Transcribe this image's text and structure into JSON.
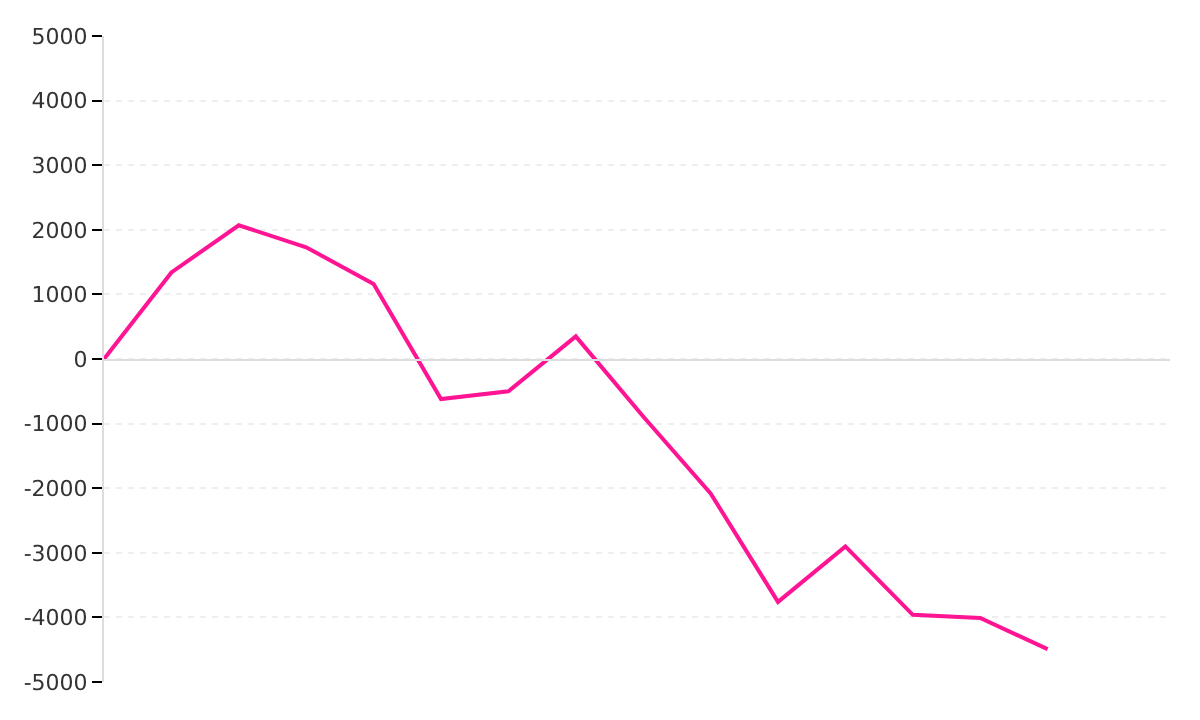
{
  "chart_data": {
    "type": "line",
    "categories": [
      null,
      null,
      null,
      null,
      null,
      null,
      null,
      null,
      null,
      null,
      null,
      null,
      null,
      null,
      null
    ],
    "series": [
      {
        "color": "#ff1493",
        "values": [
          0,
          1340,
          2070,
          1730,
          1160,
          -620,
          -500,
          350,
          -890,
          -2080,
          -3760,
          -2900,
          -3960,
          -4010,
          -4490
        ]
      }
    ],
    "ylim": [
      -5000,
      5000
    ],
    "yticks": [
      -5000,
      -4000,
      -3000,
      -2000,
      -1000,
      0,
      1000,
      2000,
      3000,
      4000,
      5000
    ],
    "grid": "y",
    "marker": "none",
    "line_style": "solid",
    "tick_labels": "y"
  }
}
